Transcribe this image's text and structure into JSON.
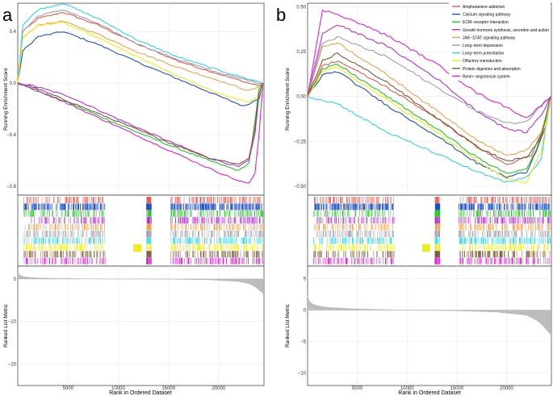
{
  "figure": {
    "panels": [
      "a",
      "b"
    ],
    "legend_title": ""
  },
  "colors": {
    "Amphetamine addiction": "#e8594f",
    "Calcium signaling pathway": "#1f4fc4",
    "ECM−receptor interaction": "#23c623",
    "Growth hormone synthesis, secretion and action": "#b92fd9",
    "JAK−STAT signaling pathway": "#f2a04a",
    "Long−term depression": "#9d9dab",
    "Long−term potentiation": "#2fd3e8",
    "Olfactory transduction": "#eded19",
    "Protein digestion and absorption": "#7a5a3a",
    "Renin−angiotensin system": "#e21fd4"
  },
  "chart_data": [
    {
      "panel": "a",
      "type": "line",
      "title": "",
      "xlabel": "Rank in Ordered Dataset",
      "es_ylabel": "Running Enrichment Score",
      "metric_ylabel": "Ranked List Metric",
      "xlim": [
        0,
        24500
      ],
      "xticks": [
        5000,
        10000,
        15000,
        20000
      ],
      "es_ylim": [
        -0.87,
        0.62
      ],
      "es_yticks": [
        -0.8,
        -0.4,
        0.0,
        0.4
      ],
      "es_ytick_labels": [
        "−0.8",
        "−0.4",
        "0.0",
        "0.4"
      ],
      "metric_ylim": [
        -25,
        3
      ],
      "metric_yticks": [
        0,
        -10,
        -20
      ],
      "metric_ytick_labels": [
        "0",
        "−10",
        "−20"
      ],
      "metric_curve": {
        "x": [
          0,
          50,
          150,
          300,
          600,
          1000,
          2000,
          4000,
          7000,
          10000,
          15000,
          19000,
          22000,
          23000,
          23600,
          24000,
          24400
        ],
        "y": [
          1.7,
          1.4,
          1.1,
          0.8,
          0.55,
          0.4,
          0.22,
          0.1,
          0.03,
          0,
          -0.05,
          -0.2,
          -0.6,
          -1.1,
          -1.8,
          -2.6,
          -3.4
        ]
      },
      "series": [
        {
          "name": "Amphetamine addiction",
          "x": [
            0,
            500,
            2000,
            4500,
            8000,
            12000,
            16000,
            20000,
            23000,
            24000,
            24400
          ],
          "y": [
            0,
            0.4,
            0.5,
            0.55,
            0.45,
            0.3,
            0.17,
            0.07,
            0,
            -0.02,
            0
          ]
        },
        {
          "name": "Calcium signaling pathway",
          "x": [
            0,
            500,
            2000,
            4500,
            8000,
            12000,
            16000,
            20000,
            22500,
            24000,
            24400
          ],
          "y": [
            0,
            0.25,
            0.36,
            0.4,
            0.3,
            0.16,
            0.03,
            -0.1,
            -0.18,
            -0.12,
            0
          ]
        },
        {
          "name": "ECM−receptor interaction",
          "x": [
            0,
            1500,
            5000,
            10000,
            15000,
            19000,
            22000,
            23000,
            23600,
            24000,
            24400
          ],
          "y": [
            0,
            -0.05,
            -0.15,
            -0.32,
            -0.48,
            -0.6,
            -0.68,
            -0.62,
            -0.3,
            -0.05,
            0
          ]
        },
        {
          "name": "Growth hormone synthesis, secretion and action",
          "x": [
            0,
            1500,
            5000,
            10000,
            15000,
            19000,
            22000,
            23000,
            23600,
            24000,
            24400
          ],
          "y": [
            0,
            -0.02,
            -0.1,
            -0.28,
            -0.45,
            -0.58,
            -0.65,
            -0.6,
            -0.4,
            -0.1,
            0
          ]
        },
        {
          "name": "JAK−STAT signaling pathway",
          "x": [
            0,
            500,
            2000,
            4500,
            8000,
            12000,
            16000,
            20000,
            23000,
            24000,
            24400
          ],
          "y": [
            0,
            0.35,
            0.45,
            0.48,
            0.38,
            0.24,
            0.12,
            0.02,
            -0.06,
            -0.03,
            0
          ]
        },
        {
          "name": "Long−term depression",
          "x": [
            0,
            500,
            2000,
            4500,
            8000,
            12000,
            16000,
            20000,
            23000,
            24000,
            24400
          ],
          "y": [
            0,
            0.4,
            0.52,
            0.57,
            0.46,
            0.3,
            0.18,
            0.08,
            0.02,
            0,
            0
          ]
        },
        {
          "name": "Long−term potentiation",
          "x": [
            0,
            500,
            2000,
            4500,
            8000,
            12000,
            16000,
            20000,
            23000,
            24000,
            24400
          ],
          "y": [
            0,
            0.45,
            0.57,
            0.62,
            0.5,
            0.33,
            0.2,
            0.1,
            0.03,
            0.01,
            0
          ]
        },
        {
          "name": "Olfactory transduction",
          "x": [
            0,
            500,
            2000,
            4500,
            8000,
            12000,
            16000,
            20000,
            23000,
            24000,
            24400
          ],
          "y": [
            0,
            0.35,
            0.45,
            0.47,
            0.35,
            0.2,
            0.05,
            -0.08,
            -0.15,
            -0.1,
            0
          ]
        },
        {
          "name": "Protein digestion and absorption",
          "x": [
            0,
            1500,
            5000,
            10000,
            15000,
            19000,
            22000,
            23000,
            23600,
            24000,
            24400
          ],
          "y": [
            0,
            -0.03,
            -0.14,
            -0.3,
            -0.46,
            -0.58,
            -0.63,
            -0.58,
            -0.35,
            -0.08,
            0
          ]
        },
        {
          "name": "Renin−angiotensin system",
          "x": [
            0,
            1500,
            5000,
            10000,
            15000,
            19000,
            22000,
            23000,
            23600,
            24000,
            24400
          ],
          "y": [
            0,
            -0.04,
            -0.16,
            -0.34,
            -0.52,
            -0.66,
            -0.76,
            -0.78,
            -0.7,
            -0.4,
            0
          ]
        }
      ]
    },
    {
      "panel": "b",
      "type": "line",
      "title": "",
      "xlabel": "Rank in Ordered Dataset",
      "es_ylabel": "Running Enrichment Score",
      "metric_ylabel": "Ranked List Metric",
      "xlim": [
        0,
        24500
      ],
      "xticks": [
        5000,
        10000,
        15000,
        20000
      ],
      "es_ylim": [
        -0.55,
        0.52
      ],
      "es_yticks": [
        0.5,
        0.25,
        0.0,
        -0.25,
        -0.5
      ],
      "es_ytick_labels": [
        "0.50",
        "0.25",
        "0.00",
        "−0.25",
        "−0.50"
      ],
      "metric_ylim": [
        -12,
        7
      ],
      "metric_yticks": [
        5,
        0,
        -5,
        -10
      ],
      "metric_ytick_labels": [
        "5",
        "0",
        "−5",
        "−10"
      ],
      "metric_curve": {
        "x": [
          0,
          50,
          150,
          300,
          600,
          1000,
          2000,
          4000,
          7000,
          10000,
          15000,
          19000,
          22000,
          23000,
          23600,
          24000,
          24400
        ],
        "y": [
          2.4,
          2.0,
          1.6,
          1.2,
          0.9,
          0.7,
          0.45,
          0.25,
          0.1,
          0,
          -0.1,
          -0.3,
          -0.8,
          -1.6,
          -2.4,
          -3.1,
          -3.8
        ]
      },
      "legend": {
        "position": "top-right",
        "entries": [
          "Amphetamine addiction",
          "Calcium signaling pathway",
          "ECM−receptor interaction",
          "Growth hormone synthesis, secretion and action",
          "JAK−STAT signaling pathway",
          "Long−term depression",
          "Long−term potentiation",
          "Olfactory transduction",
          "Protein digestion and absorption",
          "Renin−angiotensin system"
        ]
      },
      "series": [
        {
          "name": "Amphetamine addiction",
          "x": [
            0,
            1500,
            3000,
            8000,
            13000,
            17000,
            20000,
            22500,
            23500,
            24000,
            24400
          ],
          "y": [
            0,
            0.17,
            0.2,
            0.05,
            -0.12,
            -0.28,
            -0.38,
            -0.33,
            -0.2,
            -0.1,
            0
          ]
        },
        {
          "name": "Calcium signaling pathway",
          "x": [
            0,
            1500,
            3000,
            8000,
            13000,
            17000,
            20000,
            22000,
            23000,
            24000,
            24400
          ],
          "y": [
            0,
            0.12,
            0.14,
            -0.05,
            -0.22,
            -0.37,
            -0.45,
            -0.42,
            -0.3,
            -0.15,
            0
          ]
        },
        {
          "name": "ECM−receptor interaction",
          "x": [
            0,
            1500,
            3000,
            8000,
            13000,
            17000,
            20000,
            22000,
            23000,
            24000,
            24400
          ],
          "y": [
            0,
            0.15,
            0.18,
            0,
            -0.18,
            -0.34,
            -0.43,
            -0.4,
            -0.3,
            -0.12,
            0
          ]
        },
        {
          "name": "Growth hormone synthesis, secretion and action",
          "x": [
            0,
            1500,
            3000,
            8000,
            13000,
            17000,
            20000,
            22000,
            23500,
            24000,
            24400
          ],
          "y": [
            0,
            0.35,
            0.4,
            0.28,
            0.1,
            -0.08,
            -0.18,
            -0.2,
            -0.1,
            -0.05,
            0
          ]
        },
        {
          "name": "JAK−STAT signaling pathway",
          "x": [
            0,
            1500,
            3000,
            8000,
            13000,
            17000,
            20000,
            22000,
            23500,
            24000,
            24400
          ],
          "y": [
            0,
            0.28,
            0.3,
            0.12,
            -0.08,
            -0.24,
            -0.33,
            -0.3,
            -0.2,
            -0.1,
            0
          ]
        },
        {
          "name": "Long−term depression",
          "x": [
            0,
            1500,
            3000,
            8000,
            13000,
            17000,
            20000,
            22000,
            23500,
            24000,
            24400
          ],
          "y": [
            0,
            0.3,
            0.33,
            0.22,
            0.05,
            -0.08,
            -0.15,
            -0.14,
            -0.05,
            -0.02,
            0
          ]
        },
        {
          "name": "Long−term potentiation",
          "x": [
            0,
            1500,
            3000,
            8000,
            13000,
            17000,
            20000,
            22000,
            23500,
            24000,
            24400
          ],
          "y": [
            0,
            -0.02,
            -0.04,
            -0.2,
            -0.32,
            -0.42,
            -0.48,
            -0.45,
            -0.35,
            -0.15,
            0
          ]
        },
        {
          "name": "Olfactory transduction",
          "x": [
            0,
            1500,
            3000,
            8000,
            13000,
            17000,
            20000,
            22000,
            23500,
            24000,
            24400
          ],
          "y": [
            0,
            0.14,
            0.16,
            -0.02,
            -0.2,
            -0.36,
            -0.46,
            -0.48,
            -0.3,
            -0.15,
            0
          ]
        },
        {
          "name": "Protein digestion and absorption",
          "x": [
            0,
            1500,
            3000,
            8000,
            13000,
            17000,
            20000,
            22000,
            23500,
            24000,
            24400
          ],
          "y": [
            0,
            0.2,
            0.24,
            0.08,
            -0.12,
            -0.28,
            -0.36,
            -0.34,
            -0.22,
            -0.1,
            0
          ]
        },
        {
          "name": "Renin−angiotensin system",
          "x": [
            0,
            1500,
            3000,
            8000,
            13000,
            17000,
            20000,
            22000,
            23500,
            24000,
            24400
          ],
          "y": [
            0,
            0.48,
            0.46,
            0.34,
            0.18,
            0.02,
            -0.06,
            -0.12,
            -0.05,
            -0.02,
            0
          ]
        }
      ]
    }
  ]
}
